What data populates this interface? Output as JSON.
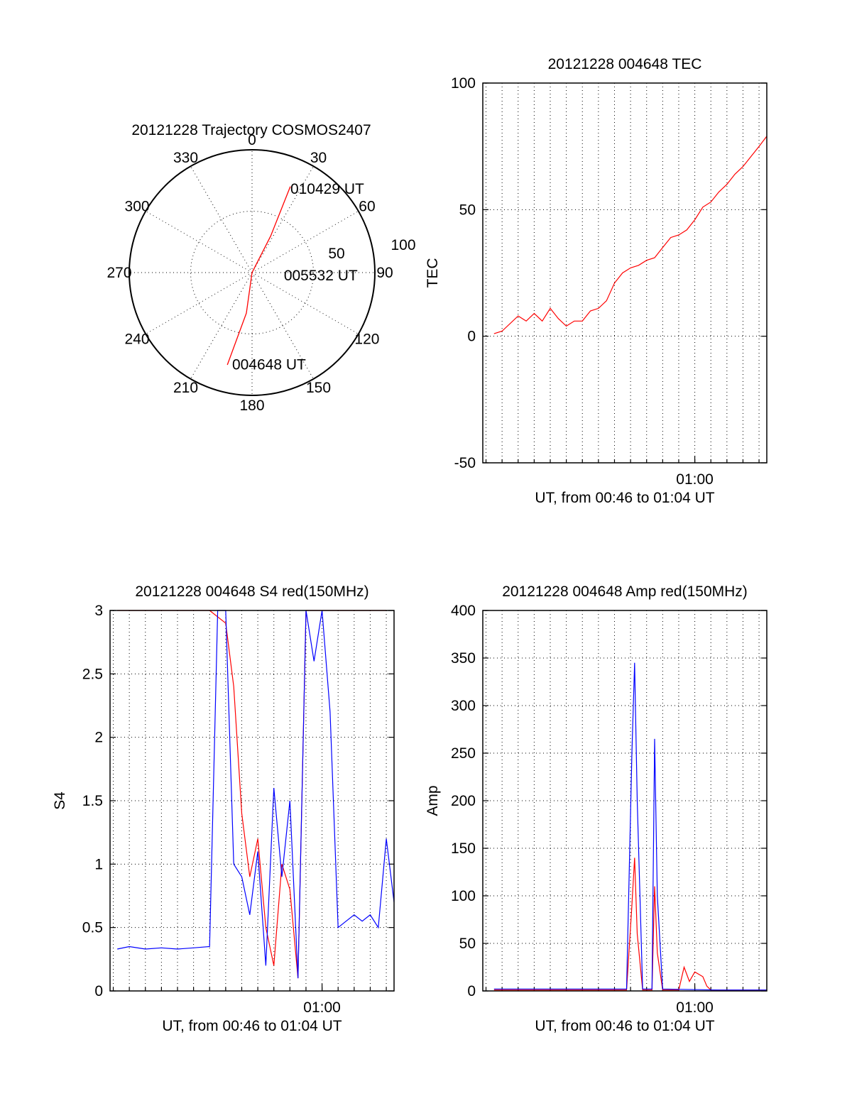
{
  "chart_data": [
    {
      "type": "polar",
      "title": "20121228 Trajectory COSMOS2407",
      "angle_labels": [
        "0",
        "30",
        "60",
        "90",
        "120",
        "150",
        "180",
        "210",
        "240",
        "270",
        "300",
        "330"
      ],
      "radius_labels": [
        "50",
        "100"
      ],
      "series": [
        {
          "color": "#ff0000",
          "points": [
            {
              "azimuth": 195,
              "elevation": 20
            },
            {
              "azimuth": 188,
              "elevation": 60
            },
            {
              "azimuth": 90,
              "elevation": 90
            },
            {
              "azimuth": 27,
              "elevation": 60
            },
            {
              "azimuth": 24,
              "elevation": 21
            }
          ]
        }
      ],
      "annotations": [
        {
          "text": "010429 UT",
          "azimuth": 24,
          "elevation": 21
        },
        {
          "text": "005532 UT",
          "azimuth": 82,
          "elevation": 78
        },
        {
          "text": "004648 UT",
          "azimuth": 190,
          "elevation": 18
        }
      ]
    },
    {
      "type": "line",
      "title": "20121228 004648 TEC",
      "xlabel": "UT, from 00:46 to 01:04 UT",
      "ylabel": "TEC",
      "ylim": [
        -50,
        100
      ],
      "yticks": [
        "-50",
        "0",
        "50",
        "100"
      ],
      "xlim": [
        "00:46:48",
        "01:04:29"
      ],
      "xticks": [
        {
          "label": "01:00",
          "t": "01:00:00"
        }
      ],
      "series": [
        {
          "color": "#ff0000",
          "x": [
            "00:47:30",
            "00:48:00",
            "00:49:00",
            "00:49:30",
            "00:50:00",
            "00:50:30",
            "00:51:00",
            "00:51:30",
            "00:52:00",
            "00:52:30",
            "00:53:00",
            "00:53:30",
            "00:54:00",
            "00:54:30",
            "00:55:00",
            "00:55:30",
            "00:56:00",
            "00:56:30",
            "00:57:00",
            "00:57:30",
            "00:58:00",
            "00:58:30",
            "00:59:00",
            "00:59:30",
            "01:00:00",
            "01:00:30",
            "01:01:00",
            "01:01:30",
            "01:02:00",
            "01:02:30",
            "01:03:00",
            "01:03:30",
            "01:04:00",
            "01:04:29"
          ],
          "y": [
            1,
            2,
            8,
            6,
            9,
            6,
            11,
            7,
            4,
            6,
            6,
            10,
            11,
            14,
            21,
            25,
            27,
            28,
            30,
            31,
            35,
            39,
            40,
            42,
            46,
            51,
            53,
            57,
            60,
            64,
            67,
            71,
            75,
            79
          ]
        }
      ]
    },
    {
      "type": "line",
      "title": "20121228 004648 S4 red(150MHz)",
      "xlabel": "UT, from 00:46 to 01:04 UT",
      "ylabel": "S4",
      "ylim": [
        0,
        3
      ],
      "yticks": [
        "0",
        "0.5",
        "1",
        "1.5",
        "2",
        "2.5",
        "3"
      ],
      "xlim": [
        "00:46:48",
        "01:04:29"
      ],
      "xticks": [
        {
          "label": "01:00",
          "t": "01:00:00"
        }
      ],
      "series": [
        {
          "color": "#ff0000",
          "x": [
            "00:47:15",
            "00:48:00",
            "00:49:00",
            "00:50:00",
            "00:51:00",
            "00:52:00",
            "00:53:00",
            "00:54:00",
            "00:54:30",
            "00:55:00",
            "00:55:30",
            "00:56:00",
            "00:56:30",
            "00:57:00",
            "00:57:30",
            "00:58:00",
            "00:58:30",
            "00:59:00",
            "00:59:30",
            "01:00:00",
            "01:01:00",
            "01:02:00",
            "01:03:00",
            "01:04:00"
          ],
          "y": [
            3.0,
            3.0,
            3.0,
            3.0,
            3.0,
            3.0,
            3.0,
            2.9,
            2.4,
            1.4,
            0.9,
            1.2,
            0.5,
            0.2,
            1.0,
            0.8,
            0.1,
            3.0,
            3.0,
            3.0,
            3.0,
            3.0,
            3.0,
            3.0
          ]
        },
        {
          "color": "#0000ff",
          "x": [
            "00:47:15",
            "00:48:00",
            "00:49:00",
            "00:50:00",
            "00:51:00",
            "00:52:00",
            "00:53:00",
            "00:53:30",
            "00:54:00",
            "00:54:30",
            "00:55:00",
            "00:55:30",
            "00:56:00",
            "00:56:30",
            "00:57:00",
            "00:57:30",
            "00:58:00",
            "00:58:30",
            "00:59:00",
            "00:59:30",
            "01:00:00",
            "01:00:30",
            "01:01:00",
            "01:01:30",
            "01:02:00",
            "01:02:30",
            "01:03:00",
            "01:03:30",
            "01:04:00",
            "01:04:29"
          ],
          "y": [
            0.33,
            0.35,
            0.33,
            0.34,
            0.33,
            0.34,
            0.35,
            3.0,
            3.0,
            1.0,
            0.9,
            0.6,
            1.1,
            0.2,
            1.6,
            0.9,
            1.5,
            0.1,
            3.0,
            2.6,
            3.0,
            2.2,
            0.5,
            0.55,
            0.6,
            0.55,
            0.6,
            0.5,
            1.2,
            0.7
          ]
        }
      ]
    },
    {
      "type": "line",
      "title": "20121228 004648 Amp red(150MHz)",
      "xlabel": "UT, from 00:46 to 01:04 UT",
      "ylabel": "Amp",
      "ylim": [
        0,
        400
      ],
      "yticks": [
        "0",
        "50",
        "100",
        "150",
        "200",
        "250",
        "300",
        "350",
        "400"
      ],
      "xlim": [
        "00:46:48",
        "01:04:29"
      ],
      "xticks": [
        {
          "label": "01:00",
          "t": "01:00:00"
        }
      ],
      "series": [
        {
          "color": "#ff0000",
          "x": [
            "00:47:30",
            "00:55:45",
            "00:56:05",
            "00:56:15",
            "00:56:25",
            "00:56:45",
            "00:57:20",
            "00:57:30",
            "00:57:40",
            "00:58:00",
            "00:59:00",
            "00:59:20",
            "00:59:40",
            "01:00:00",
            "01:00:30",
            "01:00:45",
            "01:01:00",
            "01:04:29"
          ],
          "y": [
            1,
            1,
            90,
            140,
            60,
            1,
            1,
            110,
            40,
            1,
            1,
            25,
            10,
            20,
            15,
            5,
            1,
            1
          ]
        },
        {
          "color": "#0000ff",
          "x": [
            "00:47:30",
            "00:52:15",
            "00:55:45",
            "00:56:05",
            "00:56:15",
            "00:56:25",
            "00:56:45",
            "00:57:20",
            "00:57:30",
            "00:57:40",
            "00:58:00",
            "01:01:30",
            "01:04:29"
          ],
          "y": [
            2,
            2,
            2,
            250,
            345,
            200,
            2,
            2,
            265,
            100,
            2,
            1,
            1
          ]
        }
      ]
    }
  ]
}
